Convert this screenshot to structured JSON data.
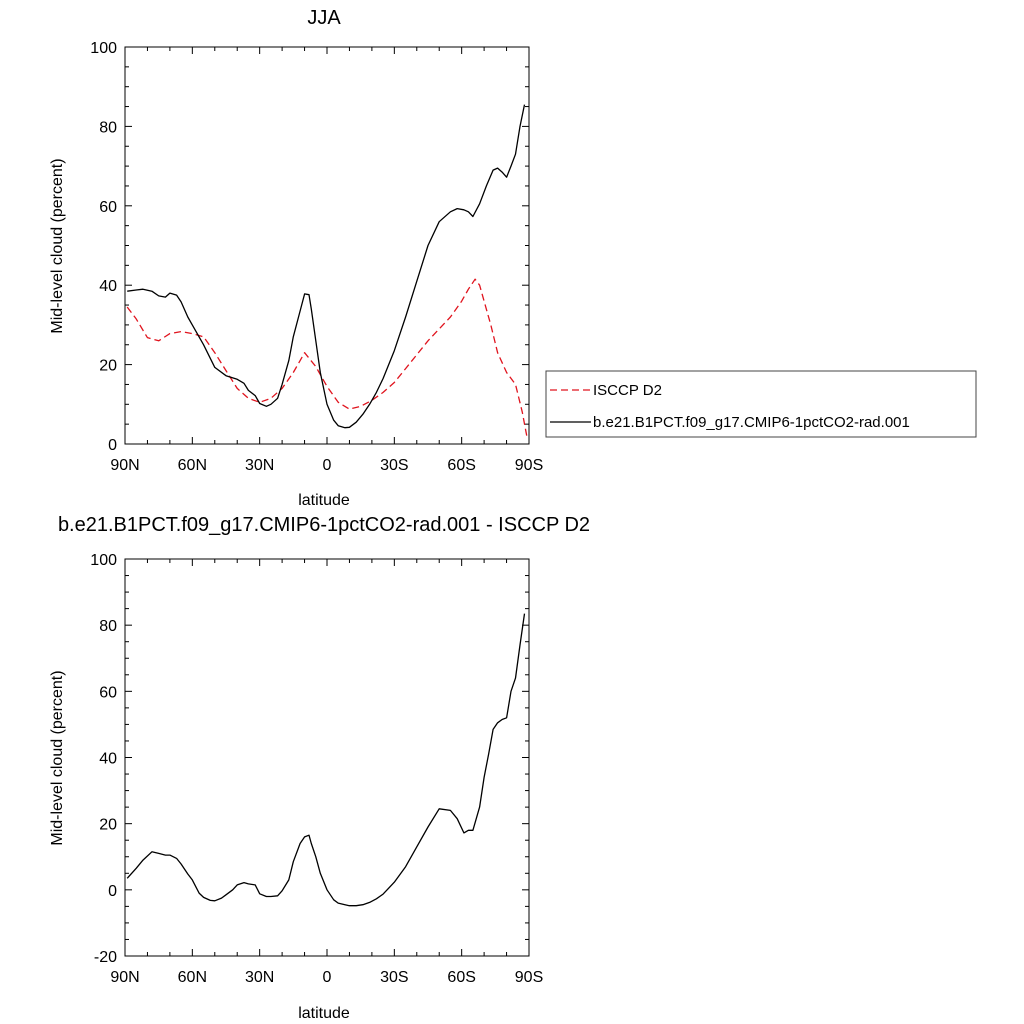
{
  "chart_data": [
    {
      "type": "line",
      "title": "JJA",
      "xlabel": "latitude",
      "ylabel": "Mid-level cloud (percent)",
      "xlim": [
        90,
        -90
      ],
      "ylim": [
        0,
        100
      ],
      "xticks": [
        90,
        60,
        30,
        0,
        -30,
        -60,
        -90
      ],
      "xtick_labels": [
        "90N",
        "60N",
        "30N",
        "0",
        "30S",
        "60S",
        "90S"
      ],
      "yticks": [
        0,
        20,
        40,
        60,
        80,
        100
      ],
      "ytick_labels": [
        "0",
        "20",
        "40",
        "60",
        "80",
        "100"
      ],
      "grid": false,
      "legend_position": "right",
      "series": [
        {
          "name": "ISCCP D2",
          "color": "#e0141e",
          "dash": "dashed",
          "x": [
            89,
            85,
            80,
            75,
            70,
            65,
            60,
            55,
            50,
            45,
            40,
            35,
            30,
            25,
            20,
            15,
            10,
            5,
            0,
            -5,
            -10,
            -15,
            -20,
            -25,
            -30,
            -35,
            -40,
            -45,
            -50,
            -55,
            -60,
            -63,
            -66,
            -68,
            -70,
            -73,
            -76,
            -80,
            -84,
            -87,
            -89
          ],
          "values": [
            34.5,
            31.5,
            26.8,
            26,
            27.8,
            28.3,
            27.8,
            27,
            23,
            18.5,
            14,
            11.5,
            10.5,
            11.5,
            14,
            18,
            23,
            19.5,
            14.5,
            10.5,
            8.8,
            9.5,
            11,
            13,
            15.5,
            19,
            22.5,
            26,
            29,
            32,
            36,
            39,
            41.5,
            40,
            36,
            30,
            23,
            18,
            15,
            8,
            2
          ]
        },
        {
          "name": "b.e21.B1PCT.f09_g17.CMIP6-1pctCO2-rad.001",
          "color": "#000000",
          "dash": "solid",
          "x": [
            89,
            85,
            82,
            78,
            75,
            72,
            70,
            67,
            65,
            62,
            60,
            55,
            50,
            45,
            40,
            37,
            35,
            32,
            30,
            27,
            25,
            22,
            20,
            17,
            15,
            12,
            10,
            8,
            7,
            5,
            3,
            0,
            -3,
            -5,
            -8,
            -10,
            -13,
            -16,
            -19,
            -22,
            -25,
            -30,
            -35,
            -40,
            -45,
            -50,
            -55,
            -58,
            -61,
            -63,
            -65,
            -68,
            -71,
            -74,
            -76,
            -78,
            -80,
            -82,
            -84,
            -86,
            -88
          ],
          "values": [
            38.5,
            38.8,
            39,
            38.5,
            37.3,
            37,
            38,
            37.5,
            35.8,
            32,
            30,
            25,
            19.3,
            17.2,
            16.3,
            15.3,
            13.5,
            12.2,
            10.2,
            9.5,
            10,
            11.5,
            15,
            21,
            27,
            33.5,
            37.8,
            37.6,
            34,
            26,
            18,
            10,
            6,
            4.6,
            4.1,
            4.2,
            5.5,
            7.5,
            10,
            13,
            16.5,
            23.5,
            32,
            41,
            50,
            56,
            58.5,
            59.3,
            59,
            58.5,
            57.3,
            60.5,
            65,
            69,
            69.5,
            68.5,
            67.2,
            70,
            73,
            80,
            85.5
          ]
        }
      ]
    },
    {
      "type": "line",
      "title": "b.e21.B1PCT.f09_g17.CMIP6-1pctCO2-rad.001 - ISCCP D2",
      "xlabel": "latitude",
      "ylabel": "Mid-level cloud (percent)",
      "xlim": [
        90,
        -90
      ],
      "ylim": [
        -20,
        100
      ],
      "xticks": [
        90,
        60,
        30,
        0,
        -30,
        -60,
        -90
      ],
      "xtick_labels": [
        "90N",
        "60N",
        "30N",
        "0",
        "30S",
        "60S",
        "90S"
      ],
      "yticks": [
        -20,
        0,
        20,
        40,
        60,
        80,
        100
      ],
      "ytick_labels": [
        "-20",
        "0",
        "20",
        "40",
        "60",
        "80",
        "100"
      ],
      "grid": false,
      "series": [
        {
          "color": "#000000",
          "dash": "solid",
          "x": [
            89,
            85,
            82,
            78,
            75,
            72,
            70,
            67,
            65,
            62,
            60,
            57,
            55,
            52,
            50,
            47,
            45,
            42,
            40,
            37,
            35,
            32,
            30,
            27,
            25,
            22,
            20,
            17,
            15,
            12,
            10,
            8,
            7,
            5,
            3,
            0,
            -3,
            -5,
            -8,
            -10,
            -13,
            -16,
            -19,
            -22,
            -25,
            -30,
            -35,
            -40,
            -45,
            -50,
            -55,
            -58,
            -61,
            -63,
            -65,
            -68,
            -70,
            -72,
            -74,
            -76,
            -78,
            -80,
            -82,
            -84,
            -86,
            -88
          ],
          "values": [
            3.5,
            6.5,
            9,
            11.5,
            11,
            10.5,
            10.5,
            9.5,
            7.8,
            4.8,
            3,
            -1,
            -2.3,
            -3.2,
            -3.3,
            -2.5,
            -1.5,
            0,
            1.5,
            2.2,
            1.8,
            1.5,
            -1.2,
            -2,
            -2,
            -1.8,
            -0.3,
            3,
            8.5,
            14,
            16,
            16.5,
            14,
            10,
            5,
            0,
            -3,
            -4,
            -4.5,
            -4.8,
            -4.8,
            -4.5,
            -3.8,
            -2.7,
            -1.3,
            2.3,
            7,
            13,
            19,
            24.5,
            24,
            21.5,
            17.2,
            18,
            18,
            25,
            34,
            41,
            48.5,
            50.5,
            51.5,
            52,
            60,
            64,
            74,
            83.5
          ]
        }
      ]
    }
  ],
  "legend": {
    "entries": [
      {
        "label": "ISCCP D2",
        "color": "#e0141e",
        "dash": "dashed"
      },
      {
        "label": "b.e21.B1PCT.f09_g17.CMIP6-1pctCO2-rad.001",
        "color": "#000000",
        "dash": "solid"
      }
    ]
  }
}
